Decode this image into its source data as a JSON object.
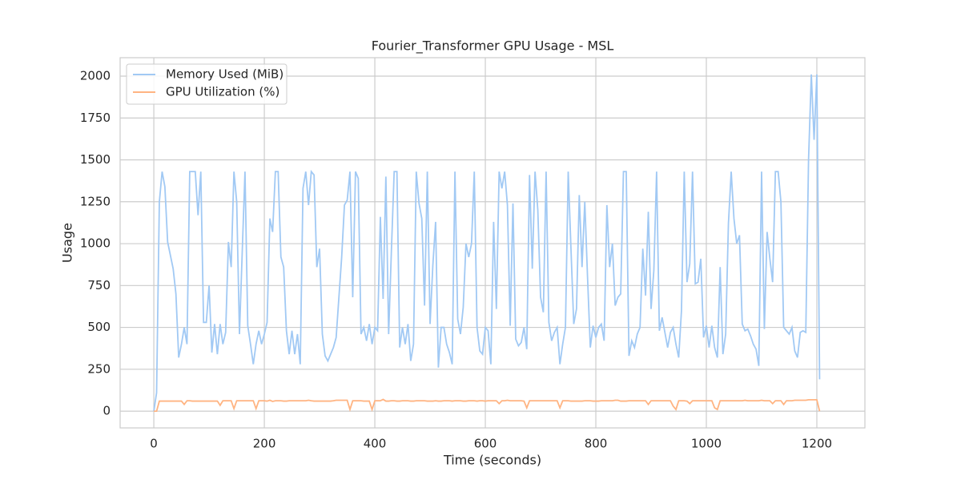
{
  "chart_data": {
    "type": "line",
    "title": "Fourier_Transformer GPU Usage - MSL",
    "xlabel": "Time (seconds)",
    "ylabel": "Usage",
    "xlim": [
      -61,
      1287
    ],
    "ylim": [
      -100,
      2110
    ],
    "xticks": [
      0,
      200,
      400,
      600,
      800,
      1000,
      1200
    ],
    "yticks": [
      0,
      250,
      500,
      750,
      1000,
      1250,
      1500,
      1750,
      2000
    ],
    "grid": true,
    "legend": "upper left",
    "x": [
      0,
      5,
      10,
      15,
      20,
      25,
      30,
      35,
      40,
      45,
      50,
      55,
      60,
      65,
      70,
      75,
      80,
      85,
      90,
      95,
      100,
      105,
      110,
      115,
      120,
      125,
      130,
      135,
      140,
      145,
      150,
      155,
      160,
      165,
      170,
      175,
      180,
      185,
      190,
      195,
      200,
      205,
      210,
      215,
      220,
      225,
      230,
      235,
      240,
      245,
      250,
      255,
      260,
      265,
      270,
      275,
      280,
      285,
      290,
      295,
      300,
      305,
      310,
      315,
      320,
      325,
      330,
      335,
      340,
      345,
      350,
      355,
      360,
      365,
      370,
      375,
      380,
      385,
      390,
      395,
      400,
      405,
      410,
      415,
      420,
      425,
      430,
      435,
      440,
      445,
      450,
      455,
      460,
      465,
      470,
      475,
      480,
      485,
      490,
      495,
      500,
      505,
      510,
      515,
      520,
      525,
      530,
      535,
      540,
      545,
      550,
      555,
      560,
      565,
      570,
      575,
      580,
      585,
      590,
      595,
      600,
      605,
      610,
      615,
      620,
      625,
      630,
      635,
      640,
      645,
      650,
      655,
      660,
      665,
      670,
      675,
      680,
      685,
      690,
      695,
      700,
      705,
      710,
      715,
      720,
      725,
      730,
      735,
      740,
      745,
      750,
      755,
      760,
      765,
      770,
      775,
      780,
      785,
      790,
      795,
      800,
      805,
      810,
      815,
      820,
      825,
      830,
      835,
      840,
      845,
      850,
      855,
      860,
      865,
      870,
      875,
      880,
      885,
      890,
      895,
      900,
      905,
      910,
      915,
      920,
      925,
      930,
      935,
      940,
      945,
      950,
      955,
      960,
      965,
      970,
      975,
      980,
      985,
      990,
      995,
      1000,
      1005,
      1010,
      1015,
      1020,
      1025,
      1030,
      1035,
      1040,
      1045,
      1050,
      1055,
      1060,
      1065,
      1070,
      1075,
      1080,
      1085,
      1090,
      1095,
      1100,
      1105,
      1110,
      1115,
      1120,
      1125,
      1130,
      1135,
      1140,
      1145,
      1150,
      1155,
      1160,
      1165,
      1170,
      1175,
      1180,
      1185,
      1190,
      1195,
      1200,
      1205
    ],
    "series": [
      {
        "name": "Memory Used (MiB)",
        "color": "#a1c9f4",
        "values": [
          0,
          110,
          1250,
          1430,
          1340,
          1010,
          930,
          850,
          700,
          320,
          400,
          500,
          400,
          1430,
          1430,
          1430,
          1170,
          1430,
          530,
          530,
          750,
          350,
          520,
          340,
          520,
          400,
          470,
          1010,
          860,
          1430,
          1250,
          460,
          950,
          1430,
          510,
          400,
          280,
          400,
          480,
          400,
          460,
          530,
          1150,
          1070,
          1430,
          1430,
          920,
          860,
          480,
          340,
          480,
          340,
          460,
          280,
          1330,
          1430,
          1230,
          1430,
          1410,
          860,
          970,
          460,
          330,
          300,
          340,
          380,
          440,
          680,
          920,
          1230,
          1260,
          1430,
          680,
          1430,
          1390,
          460,
          500,
          420,
          520,
          400,
          500,
          480,
          1160,
          670,
          1400,
          460,
          960,
          1430,
          1430,
          380,
          500,
          400,
          520,
          300,
          400,
          1430,
          1240,
          1150,
          630,
          1430,
          520,
          870,
          1130,
          260,
          500,
          500,
          400,
          350,
          280,
          1430,
          550,
          460,
          620,
          1000,
          920,
          1000,
          1430,
          500,
          360,
          340,
          500,
          480,
          280,
          1130,
          610,
          1430,
          1330,
          1430,
          1230,
          510,
          1240,
          430,
          390,
          410,
          500,
          370,
          1410,
          850,
          1430,
          1200,
          680,
          590,
          1430,
          530,
          420,
          470,
          500,
          280,
          400,
          500,
          1430,
          970,
          520,
          610,
          1290,
          860,
          1250,
          800,
          380,
          510,
          440,
          500,
          520,
          420,
          1230,
          860,
          1000,
          630,
          680,
          700,
          1430,
          1430,
          330,
          420,
          380,
          460,
          500,
          970,
          690,
          1190,
          610,
          840,
          1430,
          480,
          560,
          470,
          380,
          470,
          500,
          400,
          320,
          600,
          1430,
          770,
          880,
          1430,
          760,
          770,
          910,
          440,
          510,
          380,
          510,
          380,
          320,
          860,
          340,
          460,
          1120,
          1430,
          1150,
          1000,
          1050,
          520,
          480,
          490,
          450,
          400,
          370,
          270,
          1430,
          490,
          1070,
          910,
          770,
          1430,
          1430,
          1250,
          500,
          480,
          460,
          500,
          360,
          320,
          470,
          480,
          470,
          1500,
          2010,
          1620,
          2010,
          190
        ]
      },
      {
        "name": "GPU Utilization (%)",
        "color": "#ffb482",
        "values": [
          0,
          0,
          60,
          60,
          60,
          60,
          60,
          60,
          60,
          60,
          60,
          40,
          62,
          62,
          60,
          60,
          60,
          60,
          60,
          60,
          60,
          60,
          60,
          60,
          35,
          62,
          62,
          62,
          62,
          15,
          62,
          62,
          62,
          62,
          62,
          62,
          62,
          15,
          62,
          62,
          62,
          60,
          65,
          58,
          62,
          62,
          62,
          60,
          60,
          62,
          62,
          62,
          62,
          62,
          62,
          62,
          65,
          62,
          60,
          60,
          60,
          60,
          60,
          60,
          60,
          62,
          65,
          65,
          65,
          65,
          65,
          10,
          62,
          62,
          62,
          62,
          60,
          60,
          60,
          10,
          62,
          62,
          62,
          70,
          60,
          60,
          62,
          62,
          60,
          60,
          62,
          62,
          62,
          60,
          60,
          62,
          62,
          62,
          62,
          60,
          60,
          60,
          62,
          60,
          60,
          62,
          62,
          62,
          60,
          62,
          62,
          62,
          60,
          60,
          62,
          62,
          62,
          60,
          62,
          62,
          60,
          62,
          62,
          62,
          62,
          45,
          62,
          62,
          65,
          62,
          62,
          62,
          62,
          62,
          60,
          20,
          62,
          62,
          62,
          62,
          62,
          62,
          62,
          62,
          62,
          62,
          62,
          20,
          62,
          62,
          62,
          60,
          60,
          60,
          60,
          60,
          62,
          62,
          62,
          60,
          60,
          60,
          62,
          62,
          62,
          62,
          62,
          65,
          65,
          60,
          60,
          60,
          62,
          62,
          62,
          62,
          62,
          62,
          62,
          40,
          62,
          62,
          62,
          62,
          62,
          62,
          62,
          62,
          30,
          10,
          62,
          62,
          62,
          60,
          45,
          62,
          62,
          62,
          62,
          62,
          62,
          62,
          62,
          20,
          10,
          62,
          62,
          62,
          62,
          62,
          62,
          62,
          62,
          62,
          65,
          62,
          62,
          62,
          62,
          62,
          65,
          62,
          62,
          62,
          45,
          62,
          62,
          62,
          40,
          62,
          62,
          62,
          65,
          65,
          65,
          65,
          65,
          68,
          68,
          68,
          68,
          0
        ]
      }
    ]
  }
}
